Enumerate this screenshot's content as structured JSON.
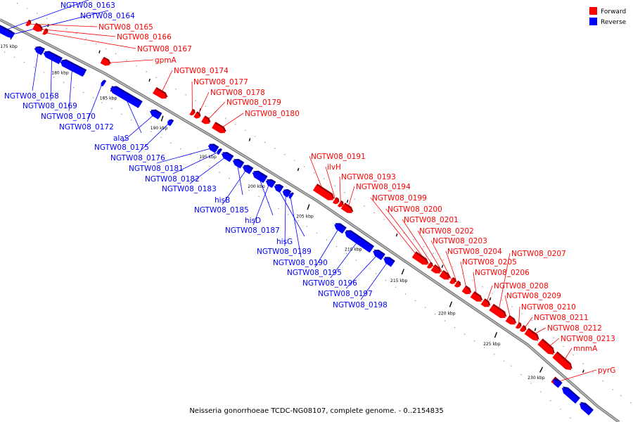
{
  "caption": "Neisseria gonorrhoeae TCDC-NG08107, complete genome. - 0..2154835",
  "legend": [
    {
      "label": "Forward",
      "color": "#ff0000"
    },
    {
      "label": "Reverse",
      "color": "#0000ff"
    }
  ],
  "colors": {
    "forward": "#ff0000",
    "reverse": "#0000ff",
    "backbone": "#7f7f7f"
  },
  "scale_ticks": [
    "175 kbp",
    "180 kbp",
    "185 kbp",
    "190 kbp",
    "195 kbp",
    "200 kbp",
    "205 kbp",
    "210 kbp",
    "215 kbp",
    "220 kbp",
    "225 kbp",
    "230 kbp"
  ],
  "genes": [
    {
      "label": "NGTW08_0163",
      "strand": "reverse"
    },
    {
      "label": "NGTW08_0164",
      "strand": "reverse"
    },
    {
      "label": "NGTW08_0165",
      "strand": "forward"
    },
    {
      "label": "NGTW08_0166",
      "strand": "forward"
    },
    {
      "label": "NGTW08_0167",
      "strand": "forward"
    },
    {
      "label": "gpmA",
      "strand": "forward"
    },
    {
      "label": "NGTW08_0168",
      "strand": "reverse"
    },
    {
      "label": "NGTW08_0169",
      "strand": "reverse"
    },
    {
      "label": "NGTW08_0170",
      "strand": "reverse"
    },
    {
      "label": "NGTW08_0172",
      "strand": "reverse"
    },
    {
      "label": "NGTW08_0174",
      "strand": "forward"
    },
    {
      "label": "NGTW08_0177",
      "strand": "forward"
    },
    {
      "label": "NGTW08_0178",
      "strand": "forward"
    },
    {
      "label": "NGTW08_0179",
      "strand": "forward"
    },
    {
      "label": "NGTW08_0180",
      "strand": "forward"
    },
    {
      "label": "alaS",
      "strand": "reverse"
    },
    {
      "label": "NGTW08_0175",
      "strand": "reverse"
    },
    {
      "label": "NGTW08_0176",
      "strand": "reverse"
    },
    {
      "label": "NGTW08_0181",
      "strand": "reverse"
    },
    {
      "label": "NGTW08_0182",
      "strand": "reverse"
    },
    {
      "label": "NGTW08_0183",
      "strand": "reverse"
    },
    {
      "label": "hisB",
      "strand": "reverse"
    },
    {
      "label": "NGTW08_0185",
      "strand": "reverse"
    },
    {
      "label": "hisD",
      "strand": "reverse"
    },
    {
      "label": "NGTW08_0187",
      "strand": "reverse"
    },
    {
      "label": "hisG",
      "strand": "reverse"
    },
    {
      "label": "NGTW08_0189",
      "strand": "reverse"
    },
    {
      "label": "NGTW08_0190",
      "strand": "reverse"
    },
    {
      "label": "NGTW08_0195",
      "strand": "reverse"
    },
    {
      "label": "NGTW08_0196",
      "strand": "reverse"
    },
    {
      "label": "NGTW08_0197",
      "strand": "reverse"
    },
    {
      "label": "NGTW08_0198",
      "strand": "reverse"
    },
    {
      "label": "NGTW08_0191",
      "strand": "forward"
    },
    {
      "label": "ilvH",
      "strand": "forward"
    },
    {
      "label": "NGTW08_0193",
      "strand": "forward"
    },
    {
      "label": "NGTW08_0194",
      "strand": "forward"
    },
    {
      "label": "NGTW08_0199",
      "strand": "forward"
    },
    {
      "label": "NGTW08_0200",
      "strand": "forward"
    },
    {
      "label": "NGTW08_0201",
      "strand": "forward"
    },
    {
      "label": "NGTW08_0202",
      "strand": "forward"
    },
    {
      "label": "NGTW08_0203",
      "strand": "forward"
    },
    {
      "label": "NGTW08_0204",
      "strand": "forward"
    },
    {
      "label": "NGTW08_0205",
      "strand": "forward"
    },
    {
      "label": "NGTW08_0207",
      "strand": "forward"
    },
    {
      "label": "NGTW08_0206",
      "strand": "forward"
    },
    {
      "label": "NGTW08_0208",
      "strand": "forward"
    },
    {
      "label": "NGTW08_0209",
      "strand": "forward"
    },
    {
      "label": "NGTW08_0210",
      "strand": "forward"
    },
    {
      "label": "NGTW08_0211",
      "strand": "forward"
    },
    {
      "label": "NGTW08_0212",
      "strand": "forward"
    },
    {
      "label": "NGTW08_0213",
      "strand": "forward"
    },
    {
      "label": "mnmA",
      "strand": "forward"
    },
    {
      "label": "pyrG",
      "strand": "forward"
    }
  ]
}
